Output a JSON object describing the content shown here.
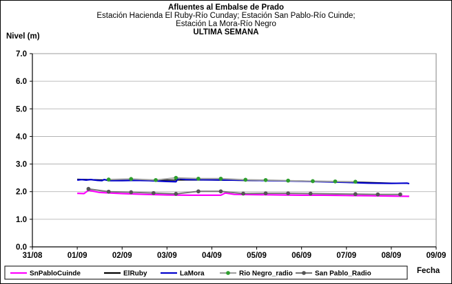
{
  "chart_data": {
    "type": "line",
    "title": "Afluentes al Embalse de Prado",
    "subtitle_lines": [
      "Estación Hacienda El Ruby-Río Cunday; Estación San Pablo-Río Cuinde;",
      "Estación La Mora-Río Negro"
    ],
    "period_label": "ULTIMA SEMANA",
    "ylabel": "Nivel (m)",
    "xlabel": "Fecha",
    "ylim": [
      0,
      7
    ],
    "yticks": [
      "0.0",
      "1.0",
      "2.0",
      "3.0",
      "4.0",
      "5.0",
      "6.0",
      "7.0"
    ],
    "xticks": [
      "31/08",
      "01/09",
      "02/09",
      "03/09",
      "04/09",
      "05/09",
      "06/09",
      "07/09",
      "08/09",
      "09/09"
    ],
    "grid": true,
    "legend_position": "bottom",
    "series": [
      {
        "name": "SnPabloCuinde",
        "color": "#ff00ff",
        "marker": "none",
        "points": [
          [
            1.0,
            1.94
          ],
          [
            1.15,
            1.93
          ],
          [
            1.25,
            2.05
          ],
          [
            1.5,
            1.97
          ],
          [
            2.0,
            1.93
          ],
          [
            2.5,
            1.9
          ],
          [
            3.0,
            1.88
          ],
          [
            3.5,
            1.87
          ],
          [
            4.0,
            1.87
          ],
          [
            4.2,
            1.87
          ],
          [
            4.3,
            1.95
          ],
          [
            4.5,
            1.9
          ],
          [
            5.0,
            1.89
          ],
          [
            5.5,
            1.88
          ],
          [
            6.0,
            1.87
          ],
          [
            6.5,
            1.87
          ],
          [
            7.0,
            1.86
          ],
          [
            7.5,
            1.85
          ],
          [
            8.0,
            1.84
          ],
          [
            8.4,
            1.83
          ]
        ]
      },
      {
        "name": "ElRuby",
        "color": "#000000",
        "marker": "none",
        "points": [
          [
            1.0,
            2.45
          ],
          [
            1.5,
            2.43
          ],
          [
            2.0,
            2.42
          ],
          [
            3.0,
            2.42
          ],
          [
            4.0,
            2.42
          ],
          [
            5.0,
            2.4
          ],
          [
            6.0,
            2.39
          ],
          [
            7.0,
            2.36
          ],
          [
            8.0,
            2.31
          ],
          [
            8.4,
            2.3
          ]
        ]
      },
      {
        "name": "LaMora",
        "color": "#0000cc",
        "marker": "none",
        "points": [
          [
            1.0,
            2.42
          ],
          [
            1.1,
            2.44
          ],
          [
            1.2,
            2.42
          ],
          [
            1.3,
            2.44
          ],
          [
            1.45,
            2.41
          ],
          [
            1.55,
            2.4
          ],
          [
            1.6,
            2.44
          ],
          [
            1.7,
            2.4
          ],
          [
            1.8,
            2.4
          ],
          [
            2.0,
            2.4
          ],
          [
            2.3,
            2.41
          ],
          [
            2.6,
            2.4
          ],
          [
            3.0,
            2.37
          ],
          [
            3.2,
            2.36
          ],
          [
            3.25,
            2.48
          ],
          [
            3.4,
            2.44
          ],
          [
            4.0,
            2.43
          ],
          [
            5.0,
            2.41
          ],
          [
            6.0,
            2.38
          ],
          [
            7.0,
            2.34
          ],
          [
            7.3,
            2.32
          ],
          [
            7.5,
            2.31
          ],
          [
            8.0,
            2.3
          ],
          [
            8.35,
            2.31
          ],
          [
            8.4,
            2.29
          ]
        ]
      },
      {
        "name": "Rio Negro_radio",
        "color": "#a0a0a0",
        "marker": "circle",
        "marker_color": "#2e9e2e",
        "points": [
          [
            1.7,
            2.44
          ],
          [
            2.2,
            2.46
          ],
          [
            2.75,
            2.42
          ],
          [
            3.2,
            2.5
          ],
          [
            3.7,
            2.47
          ],
          [
            4.2,
            2.47
          ],
          [
            4.75,
            2.43
          ],
          [
            5.2,
            2.42
          ],
          [
            5.7,
            2.4
          ],
          [
            6.25,
            2.38
          ],
          [
            6.75,
            2.37
          ],
          [
            7.2,
            2.36
          ]
        ]
      },
      {
        "name": "San Pablo_Radio",
        "color": "#777777",
        "marker": "circle",
        "marker_color": "#555555",
        "points": [
          [
            1.25,
            2.1
          ],
          [
            1.7,
            2.0
          ],
          [
            2.2,
            1.98
          ],
          [
            2.7,
            1.95
          ],
          [
            3.2,
            1.92
          ],
          [
            3.7,
            2.01
          ],
          [
            4.2,
            2.01
          ],
          [
            4.7,
            1.93
          ],
          [
            5.2,
            1.94
          ],
          [
            5.7,
            1.94
          ],
          [
            6.2,
            1.93
          ],
          [
            7.2,
            1.91
          ],
          [
            7.7,
            1.9
          ],
          [
            8.2,
            1.9
          ]
        ]
      }
    ]
  }
}
